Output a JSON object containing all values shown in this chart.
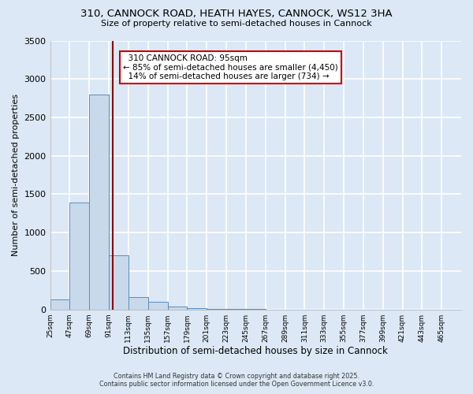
{
  "title": "310, CANNOCK ROAD, HEATH HAYES, CANNOCK, WS12 3HA",
  "subtitle": "Size of property relative to semi-detached houses in Cannock",
  "xlabel": "Distribution of semi-detached houses by size in Cannock",
  "ylabel": "Number of semi-detached properties",
  "bin_edges": [
    25,
    47,
    69,
    91,
    113,
    135,
    157,
    179,
    201,
    223,
    245,
    267,
    289,
    311,
    333,
    355,
    377,
    399,
    421,
    443,
    465
  ],
  "bar_heights": [
    130,
    1390,
    2800,
    700,
    160,
    95,
    40,
    20,
    10,
    5,
    3,
    2,
    1,
    1,
    0,
    0,
    0,
    0,
    0,
    0
  ],
  "bar_color": "#c9d9ec",
  "bar_edge_color": "#5b8db8",
  "property_size": 95,
  "property_label": "310 CANNOCK ROAD: 95sqm",
  "pct_smaller": 85,
  "count_smaller": 4450,
  "pct_larger": 14,
  "count_larger": 734,
  "vline_color": "#8b0000",
  "annotation_box_color": "#cc0000",
  "ylim": [
    0,
    3500
  ],
  "yticks": [
    0,
    500,
    1000,
    1500,
    2000,
    2500,
    3000,
    3500
  ],
  "footer_line1": "Contains HM Land Registry data © Crown copyright and database right 2025.",
  "footer_line2": "Contains public sector information licensed under the Open Government Licence v3.0.",
  "bg_color": "#dce8f5",
  "plot_bg_color": "#dce8f5",
  "grid_color": "#ffffff"
}
